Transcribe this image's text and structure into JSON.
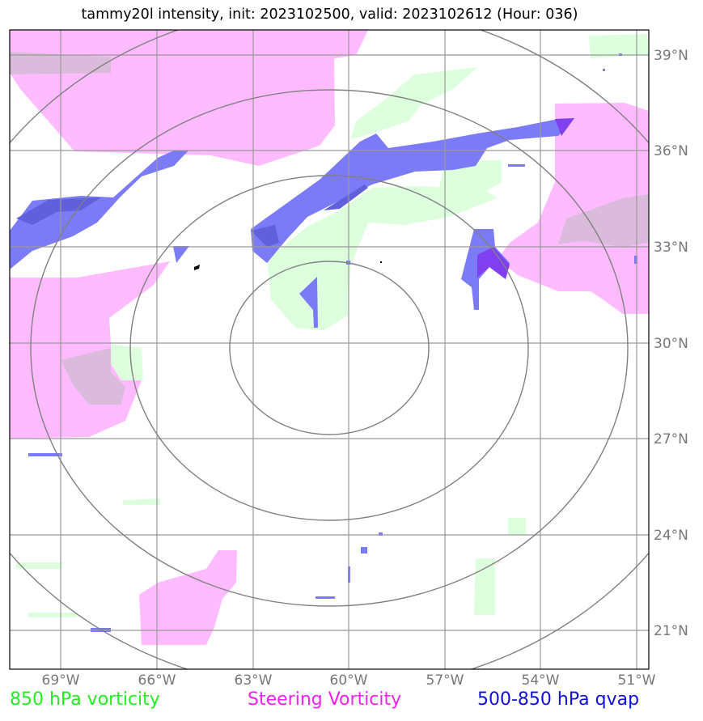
{
  "title": "tammy20l intensity, init: 2023102500, valid: 2023102612 (Hour: 036)",
  "lat_labels": [
    "39°N",
    "36°N",
    "33°N",
    "30°N",
    "27°N",
    "24°N",
    "21°N"
  ],
  "lon_labels": [
    "69°W",
    "66°W",
    "63°W",
    "60°W",
    "57°W",
    "54°W",
    "51°W"
  ],
  "legend": {
    "green": "850 hPa vorticity",
    "magenta": "Steering Vorticity",
    "blue": "500-850 hPa qvap"
  },
  "colors": {
    "green_fill": "#ddffdd",
    "magenta_fill": "#ffbbff",
    "blue_fill": "#7b7bf7",
    "grid": "#999999",
    "rings": "#808080"
  }
}
